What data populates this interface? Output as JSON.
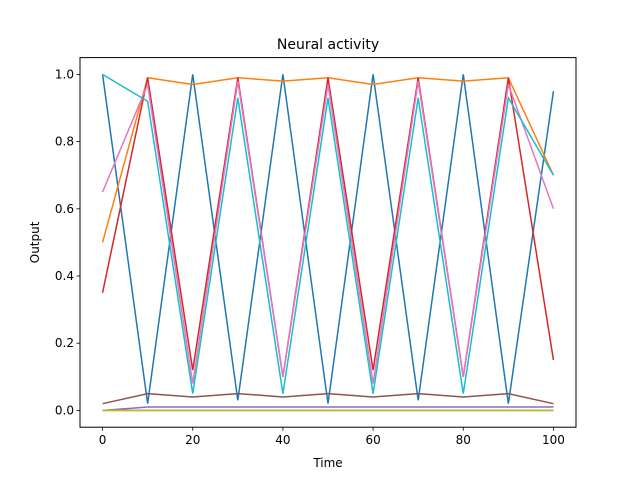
{
  "chart_data": {
    "type": "line",
    "title": "Neural activity",
    "xlabel": "Time",
    "ylabel": "Output",
    "xlim": [
      -5,
      105
    ],
    "ylim": [
      -0.05,
      1.05
    ],
    "x_ticks": [
      0,
      20,
      40,
      60,
      80,
      100
    ],
    "x_tick_labels": [
      "0",
      "20",
      "40",
      "60",
      "80",
      "100"
    ],
    "y_ticks": [
      0.0,
      0.2,
      0.4,
      0.6,
      0.8,
      1.0
    ],
    "y_tick_labels": [
      "0.0",
      "0.2",
      "0.4",
      "0.6",
      "0.8",
      "1.0"
    ],
    "grid": false,
    "legend": "none",
    "x": [
      0,
      10,
      20,
      30,
      40,
      50,
      60,
      70,
      80,
      90,
      100
    ],
    "series": [
      {
        "color": "#1f77b4",
        "values": [
          1.0,
          0.02,
          1.0,
          0.03,
          1.0,
          0.02,
          1.0,
          0.03,
          1.0,
          0.02,
          0.95
        ]
      },
      {
        "color": "#ff7f0e",
        "values": [
          0.5,
          0.99,
          0.97,
          0.99,
          0.98,
          0.99,
          0.97,
          0.99,
          0.98,
          0.99,
          0.7
        ]
      },
      {
        "color": "#2ca02c",
        "values": [
          0.0,
          0.0,
          0.0,
          0.0,
          0.0,
          0.0,
          0.0,
          0.0,
          0.0,
          0.0,
          0.0
        ]
      },
      {
        "color": "#d62728",
        "values": [
          0.35,
          0.99,
          0.12,
          0.99,
          0.1,
          0.99,
          0.12,
          0.99,
          0.1,
          0.99,
          0.15
        ]
      },
      {
        "color": "#9467bd",
        "values": [
          0.0,
          0.01,
          0.01,
          0.01,
          0.01,
          0.01,
          0.01,
          0.01,
          0.01,
          0.01,
          0.01
        ]
      },
      {
        "color": "#8c564b",
        "values": [
          0.02,
          0.05,
          0.04,
          0.05,
          0.04,
          0.05,
          0.04,
          0.05,
          0.04,
          0.05,
          0.02
        ]
      },
      {
        "color": "#e377c2",
        "values": [
          0.65,
          0.97,
          0.08,
          0.98,
          0.1,
          0.97,
          0.08,
          0.98,
          0.1,
          0.97,
          0.6
        ]
      },
      {
        "color": "#7f7f7f",
        "values": [
          0.0,
          0.0,
          0.0,
          0.0,
          0.0,
          0.0,
          0.0,
          0.0,
          0.0,
          0.0,
          0.0
        ]
      },
      {
        "color": "#bcbd22",
        "values": [
          0.0,
          0.0,
          0.0,
          0.0,
          0.0,
          0.0,
          0.0,
          0.0,
          0.0,
          0.0,
          0.0
        ]
      },
      {
        "color": "#17becf",
        "values": [
          1.0,
          0.92,
          0.05,
          0.93,
          0.05,
          0.93,
          0.05,
          0.93,
          0.05,
          0.93,
          0.7
        ]
      }
    ]
  }
}
